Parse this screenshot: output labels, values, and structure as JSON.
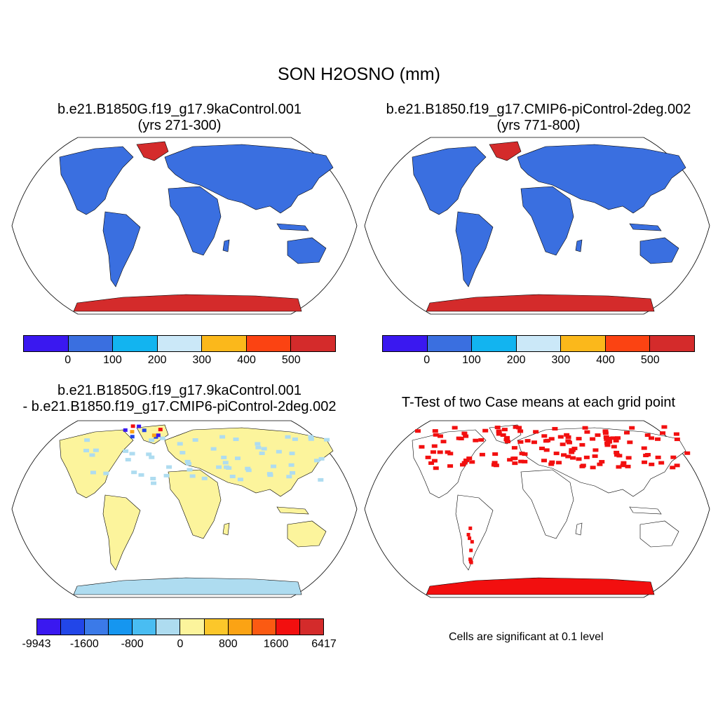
{
  "main_title": "SON H2OSNO (mm)",
  "panels": [
    {
      "title1": "b.e21.B1850G.f19_g17.9kaControl.001",
      "title2": "(yrs 271-300)"
    },
    {
      "title1": "b.e21.B1850.f19_g17.CMIP6-piControl-2deg.002",
      "title2": "(yrs 771-800)"
    },
    {
      "title1": "b.e21.B1850G.f19_g17.9kaControl.001",
      "title2": "- b.e21.B1850.f19_g17.CMIP6-piControl-2deg.002"
    },
    {
      "title1": "T-Test of two Case means at each grid point"
    }
  ],
  "colorbar_top": {
    "colors": [
      "#3a18f0",
      "#3a6fe0",
      "#12b4f0",
      "#cbe8f8",
      "#fbb81b",
      "#fb4312",
      "#d42b2b"
    ],
    "labels": [
      "0",
      "100",
      "200",
      "300",
      "400",
      "500"
    ]
  },
  "colorbar_diff": {
    "colors": [
      "#3a18f0",
      "#2246e8",
      "#3b7ae8",
      "#1596f0",
      "#49bdf2",
      "#aedcf0",
      "#fcf49c",
      "#fcc72a",
      "#fba314",
      "#fb5a12",
      "#f20f0f",
      "#d42b2b"
    ],
    "labels": [
      "-9943",
      "-1600",
      "-800",
      "0",
      "800",
      "1600",
      "6417"
    ]
  },
  "significance_note": "Cells are significant at 0.1 level",
  "colors": {
    "land_snow_low": "#3a6fe0",
    "snow_high": "#d42b2b",
    "diff_land": "#fcf49c",
    "diff_ice": "#aedcf0",
    "significant": "#f20f0f"
  }
}
